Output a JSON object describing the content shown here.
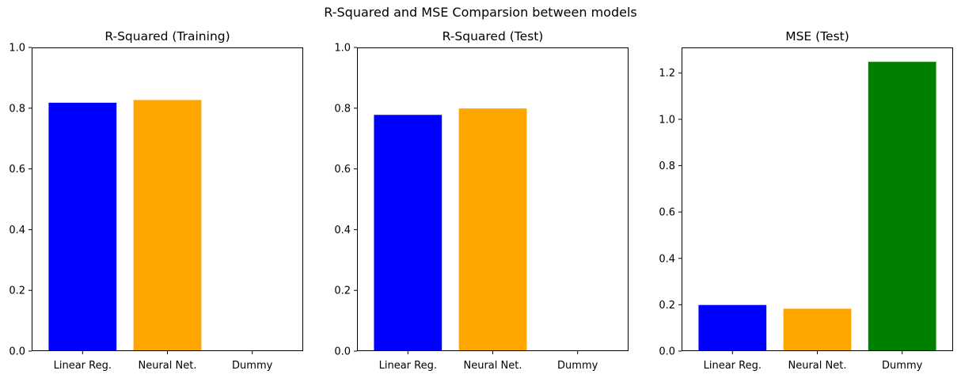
{
  "figure": {
    "suptitle": "R-Squared and MSE Comparsion between models"
  },
  "chart_data": [
    {
      "type": "bar",
      "title": "R-Squared (Training)",
      "categories": [
        "Linear Reg.",
        "Neural Net.",
        "Dummy"
      ],
      "values": [
        0.818,
        0.827,
        0.0
      ],
      "colors": [
        "#0000ff",
        "#ffa500",
        "#008000"
      ],
      "ylim": [
        0,
        1.0
      ],
      "yticks": [
        0.0,
        0.2,
        0.4,
        0.6,
        0.8,
        1.0
      ],
      "ytick_labels": [
        "0.0",
        "0.2",
        "0.4",
        "0.6",
        "0.8",
        "1.0"
      ],
      "grid": false
    },
    {
      "type": "bar",
      "title": "R-Squared (Test)",
      "categories": [
        "Linear Reg.",
        "Neural Net.",
        "Dummy"
      ],
      "values": [
        0.778,
        0.799,
        0.0
      ],
      "colors": [
        "#0000ff",
        "#ffa500",
        "#008000"
      ],
      "ylim": [
        0,
        1.0
      ],
      "yticks": [
        0.0,
        0.2,
        0.4,
        0.6,
        0.8,
        1.0
      ],
      "ytick_labels": [
        "0.0",
        "0.2",
        "0.4",
        "0.6",
        "0.8",
        "1.0"
      ],
      "grid": false
    },
    {
      "type": "bar",
      "title": "MSE (Test)",
      "categories": [
        "Linear Reg.",
        "Neural Net.",
        "Dummy"
      ],
      "values": [
        0.199,
        0.183,
        1.248
      ],
      "colors": [
        "#0000ff",
        "#ffa500",
        "#008000"
      ],
      "ylim": [
        0,
        1.31
      ],
      "yticks": [
        0.0,
        0.2,
        0.4,
        0.6,
        0.8,
        1.0,
        1.2
      ],
      "ytick_labels": [
        "0.0",
        "0.2",
        "0.4",
        "0.6",
        "0.8",
        "1.0",
        "1.2"
      ],
      "grid": false
    }
  ]
}
